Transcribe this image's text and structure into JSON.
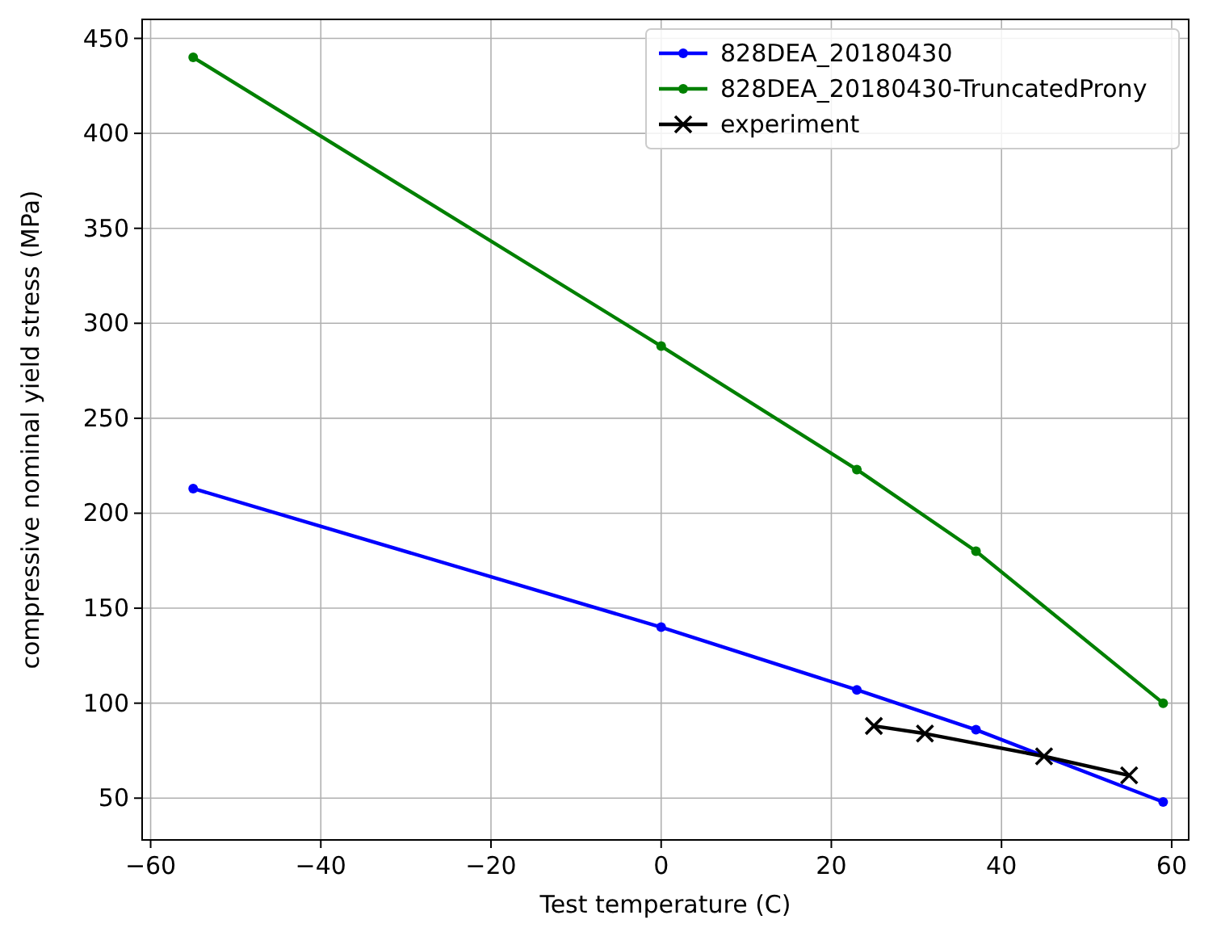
{
  "chart_data": {
    "type": "line",
    "xlabel": "Test temperature (C)",
    "ylabel": "compressive nominal yield stress (MPa)",
    "xlim": [
      -61,
      62
    ],
    "ylim": [
      28,
      460
    ],
    "xticks": [
      -60,
      -40,
      -20,
      0,
      20,
      40,
      60
    ],
    "yticks": [
      50,
      100,
      150,
      200,
      250,
      300,
      350,
      400,
      450
    ],
    "grid": true,
    "legend": "top right",
    "line_style": "solid",
    "series": [
      {
        "name": "828DEA_20180430",
        "color": "#0000ff",
        "marker": "circle",
        "x": [
          -55,
          0,
          23,
          37,
          59
        ],
        "values": [
          213,
          140,
          107,
          86,
          48
        ]
      },
      {
        "name": "828DEA_20180430-TruncatedProny",
        "color": "#008000",
        "marker": "circle",
        "x": [
          -55,
          0,
          23,
          37,
          59
        ],
        "values": [
          440,
          288,
          223,
          180,
          100
        ]
      },
      {
        "name": "experiment",
        "color": "#000000",
        "marker": "cross",
        "x": [
          25,
          31,
          45,
          55
        ],
        "values": [
          88,
          84,
          72,
          62
        ]
      }
    ]
  }
}
